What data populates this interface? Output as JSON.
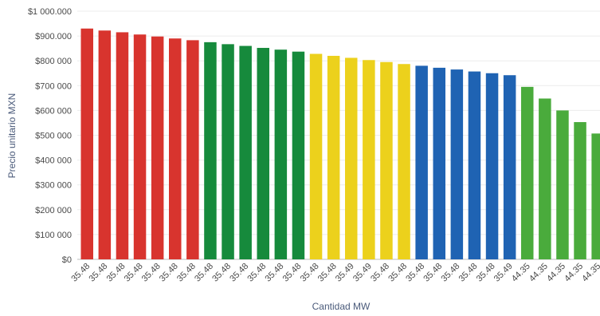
{
  "chart_data": {
    "type": "bar",
    "xlabel": "Cantidad MW",
    "ylabel": "Precio unitario MXN",
    "ylim": [
      0,
      1000000
    ],
    "y_ticks": [
      0,
      100000,
      200000,
      300000,
      400000,
      500000,
      600000,
      700000,
      800000,
      900000,
      1000000
    ],
    "y_tick_labels": [
      "$0",
      "$100 000",
      "$200 000",
      "$300 000",
      "$400 000",
      "$500 000",
      "$600 000",
      "$700 000",
      "$800 000",
      "$900.000",
      "$1 000.000"
    ],
    "grid": "horizontal",
    "categories": [
      "35.48",
      "35.48",
      "35.48",
      "35.48",
      "35.48",
      "35.48",
      "35.48",
      "35.48",
      "35.48",
      "35.48",
      "35.48",
      "35.48",
      "35.48",
      "35.48",
      "35.48",
      "35.49",
      "35.49",
      "35.48",
      "35.48",
      "35.48",
      "35.48",
      "35.48",
      "35.48",
      "35.48",
      "35.49",
      "44.35",
      "44.35",
      "44.35",
      "44.35",
      "44.35"
    ],
    "values": [
      930000,
      922000,
      915000,
      906000,
      898000,
      890000,
      883000,
      875000,
      867000,
      860000,
      852000,
      845000,
      837000,
      828000,
      820000,
      812000,
      803000,
      795000,
      787000,
      780000,
      772000,
      765000,
      757000,
      750000,
      742000,
      695000,
      648000,
      600000,
      553000,
      507000
    ],
    "colors": [
      "#d8342e",
      "#d8342e",
      "#d8342e",
      "#d8342e",
      "#d8342e",
      "#d8342e",
      "#d8342e",
      "#168a3c",
      "#168a3c",
      "#168a3c",
      "#168a3c",
      "#168a3c",
      "#168a3c",
      "#ecd11c",
      "#ecd11c",
      "#ecd11c",
      "#ecd11c",
      "#ecd11c",
      "#ecd11c",
      "#1f63b3",
      "#1f63b3",
      "#1f63b3",
      "#1f63b3",
      "#1f63b3",
      "#1f63b3",
      "#4aab3c",
      "#4aab3c",
      "#4aab3c",
      "#4aab3c",
      "#4aab3c"
    ]
  }
}
